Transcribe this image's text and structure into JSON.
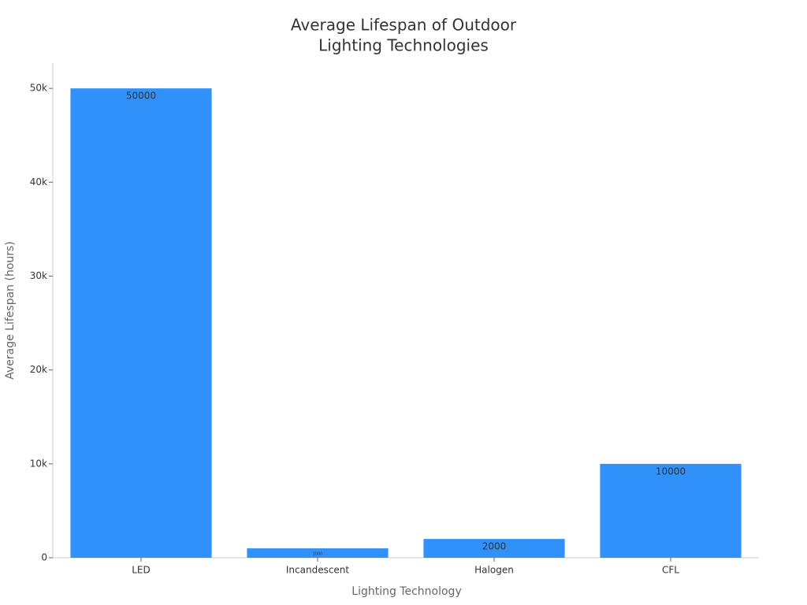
{
  "chart_data": {
    "type": "bar",
    "title": [
      "Average Lifespan of Outdoor",
      "Lighting Technologies"
    ],
    "x_label": "Lighting Technology",
    "y_label": "Average Lifespan (hours)",
    "categories": [
      "LED",
      "Incandescent",
      "Halogen",
      "CFL"
    ],
    "values": [
      50000,
      1000,
      2000,
      10000
    ],
    "color": "#2f91f9",
    "ylim": [
      0,
      52700
    ],
    "yticks": [
      0,
      {
        "value": 10000,
        "label": "10k"
      },
      {
        "value": 20000,
        "label": "20k"
      },
      {
        "value": 30000,
        "label": "30k"
      },
      {
        "value": 40000,
        "label": "40k"
      },
      {
        "value": 50000,
        "label": "50k"
      }
    ],
    "grid": false
  }
}
